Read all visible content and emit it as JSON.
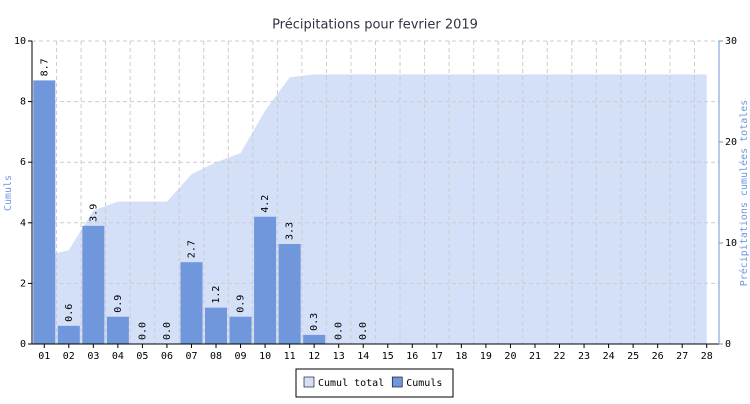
{
  "chart_data": {
    "type": "bar",
    "title": "Précipitations pour fevrier 2019",
    "ylabel": "Cumuls",
    "y2label": "Précipitations cumulées totales",
    "categories": [
      "01",
      "02",
      "03",
      "04",
      "05",
      "06",
      "07",
      "08",
      "09",
      "10",
      "11",
      "12",
      "13",
      "14",
      "15",
      "16",
      "17",
      "18",
      "19",
      "20",
      "21",
      "22",
      "23",
      "24",
      "25",
      "26",
      "27",
      "28"
    ],
    "series": [
      {
        "name": "Cumul total",
        "type": "area",
        "axis": "y2",
        "color": "#d3e0f8",
        "values": [
          8.7,
          9.3,
          13.2,
          14.1,
          14.1,
          14.1,
          16.8,
          18.0,
          18.9,
          23.1,
          26.4,
          26.7,
          26.7,
          26.7,
          26.7,
          26.7,
          26.7,
          26.7,
          26.7,
          26.7,
          26.7,
          26.7,
          26.7,
          26.7,
          26.7,
          26.7,
          26.7,
          26.7
        ]
      },
      {
        "name": "Cumuls",
        "type": "bar",
        "color": "#7096dc",
        "values": [
          8.7,
          0.6,
          3.9,
          0.9,
          0,
          0,
          2.7,
          1.2,
          0.9,
          4.2,
          3.3,
          0.3,
          0,
          0,
          null,
          null,
          null,
          null,
          null,
          null,
          null,
          null,
          null,
          null,
          null,
          null,
          null,
          null
        ],
        "value_labels": [
          "8.7",
          "0.6",
          "3.9",
          "0.9",
          "0.0",
          "0.0",
          "2.7",
          "1.2",
          "0.9",
          "4.2",
          "3.3",
          "0.3",
          "0.0",
          "0.0",
          null,
          null,
          null,
          null,
          null,
          null,
          null,
          null,
          null,
          null,
          null,
          null,
          null,
          null
        ]
      }
    ],
    "ylim": [
      0,
      10
    ],
    "yticks": [
      0,
      2,
      4,
      6,
      8,
      10
    ],
    "y2lim": [
      0,
      30
    ],
    "y2ticks": [
      0,
      10,
      20,
      30
    ],
    "grid": true,
    "legend": "bottom"
  }
}
